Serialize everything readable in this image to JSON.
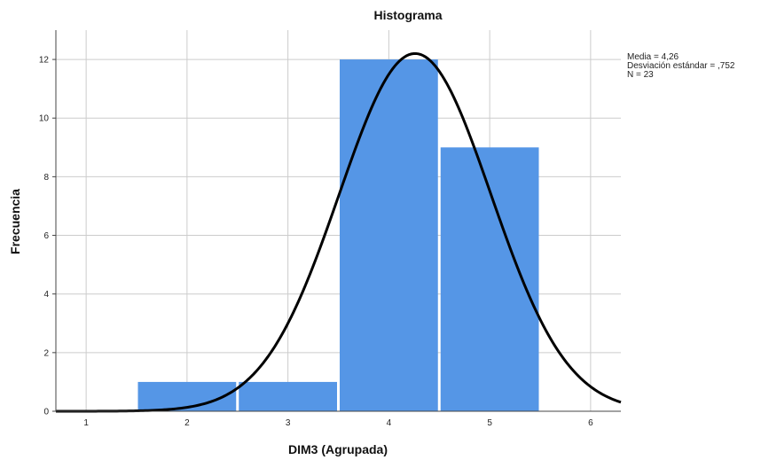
{
  "chart_data": {
    "type": "bar",
    "title": "Histograma",
    "xlabel": "DIM3 (Agrupada)",
    "ylabel": "Frecuencia",
    "categories": [
      "2",
      "3",
      "4",
      "5"
    ],
    "bins": [
      {
        "x": 2,
        "value": 1
      },
      {
        "x": 3,
        "value": 1
      },
      {
        "x": 4,
        "value": 12
      },
      {
        "x": 5,
        "value": 9
      }
    ],
    "xlim": [
      0.7,
      6.3
    ],
    "ylim": [
      0,
      13.0
    ],
    "xticks": [
      "1",
      "2",
      "3",
      "4",
      "5",
      "6"
    ],
    "yticks": [
      "0",
      "2",
      "4",
      "6",
      "8",
      "10",
      "12"
    ],
    "grid": true,
    "bar_color": "#5596e6",
    "curve_color": "#000000",
    "normal_curve": {
      "mean": 4.26,
      "sd": 0.752,
      "n": 23
    },
    "stats_lines": [
      "Media = 4,26",
      "Desviación estándar = ,752",
      "N = 23"
    ]
  }
}
